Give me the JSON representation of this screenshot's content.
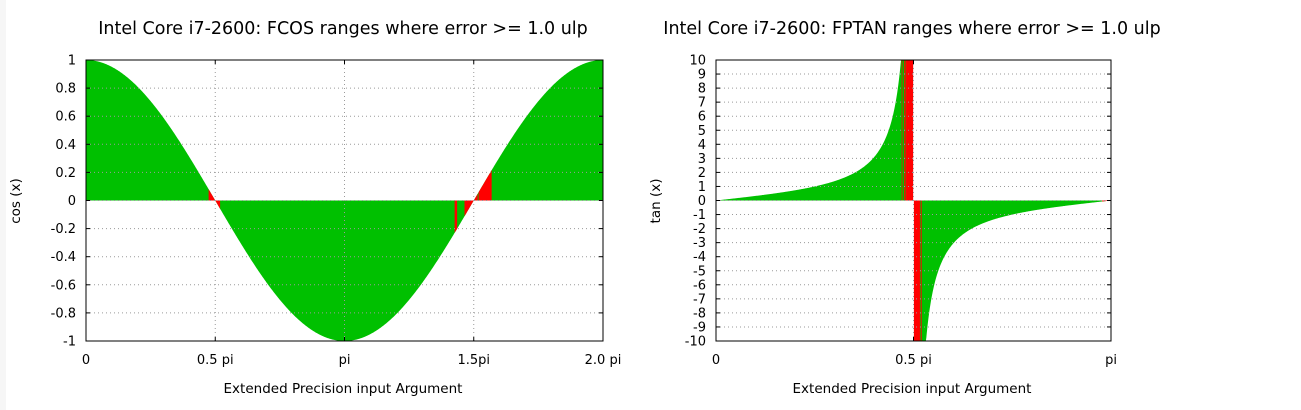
{
  "colors": {
    "fill": "#00c000",
    "error": "#ff0000",
    "grid": "#9a9a9a"
  },
  "chart_data": [
    {
      "type": "area",
      "title": "Intel Core i7-2600: FCOS ranges where error >= 1.0 ulp",
      "xlabel": "Extended Precision input Argument",
      "ylabel": "cos (x)",
      "function": "cos",
      "xlim": [
        0,
        6.2832
      ],
      "ylim": [
        -1,
        1
      ],
      "x_ticks": [
        {
          "value": 0,
          "label": "0"
        },
        {
          "value": 1.5708,
          "label": "0.5 pi"
        },
        {
          "value": 3.1416,
          "label": "pi"
        },
        {
          "value": 4.7124,
          "label": "1.5pi"
        },
        {
          "value": 6.2832,
          "label": "2.0 pi"
        }
      ],
      "y_ticks": [
        {
          "value": 1,
          "label": "1"
        },
        {
          "value": 0.8,
          "label": "0.8"
        },
        {
          "value": 0.6,
          "label": "0.6"
        },
        {
          "value": 0.4,
          "label": "0.4"
        },
        {
          "value": 0.2,
          "label": "0.2"
        },
        {
          "value": 0,
          "label": "0"
        },
        {
          "value": -0.2,
          "label": "-0.2"
        },
        {
          "value": -0.4,
          "label": "-0.4"
        },
        {
          "value": -0.6,
          "label": "-0.6"
        },
        {
          "value": -0.8,
          "label": "-0.8"
        },
        {
          "value": -1,
          "label": "-1"
        }
      ],
      "grid": true,
      "error_ranges": [
        [
          1.49,
          1.63
        ],
        [
          4.48,
          4.51
        ],
        [
          4.6,
          4.76
        ],
        [
          4.77,
          4.93
        ]
      ]
    },
    {
      "type": "area",
      "title": "Intel Core i7-2600: FPTAN ranges where error >= 1.0 ulp",
      "xlabel": "Extended Precision input Argument",
      "ylabel": "tan (x)",
      "function": "tan",
      "xlim": [
        0,
        3.1416
      ],
      "ylim": [
        -10,
        10
      ],
      "x_ticks": [
        {
          "value": 0,
          "label": "0"
        },
        {
          "value": 1.5708,
          "label": "0.5 pi"
        },
        {
          "value": 3.1416,
          "label": "pi"
        }
      ],
      "y_ticks": [
        {
          "value": 10,
          "label": "10"
        },
        {
          "value": 9,
          "label": "9"
        },
        {
          "value": 8,
          "label": "8"
        },
        {
          "value": 7,
          "label": "7"
        },
        {
          "value": 6,
          "label": "6"
        },
        {
          "value": 5,
          "label": "5"
        },
        {
          "value": 4,
          "label": "4"
        },
        {
          "value": 3,
          "label": "3"
        },
        {
          "value": 2,
          "label": "2"
        },
        {
          "value": 1,
          "label": "1"
        },
        {
          "value": 0,
          "label": "0"
        },
        {
          "value": -1,
          "label": "-1"
        },
        {
          "value": -2,
          "label": "-2"
        },
        {
          "value": -3,
          "label": "-3"
        },
        {
          "value": -4,
          "label": "-4"
        },
        {
          "value": -5,
          "label": "-5"
        },
        {
          "value": -6,
          "label": "-6"
        },
        {
          "value": -7,
          "label": "-7"
        },
        {
          "value": -8,
          "label": "-8"
        },
        {
          "value": -9,
          "label": "-9"
        },
        {
          "value": -10,
          "label": "-10"
        }
      ],
      "grid": true,
      "error_ranges": [
        [
          1.477,
          1.483
        ],
        [
          1.496,
          1.503
        ],
        [
          1.507,
          1.568
        ],
        [
          1.574,
          1.622
        ],
        [
          1.628,
          1.636
        ],
        [
          3.07,
          3.1416
        ]
      ]
    }
  ]
}
